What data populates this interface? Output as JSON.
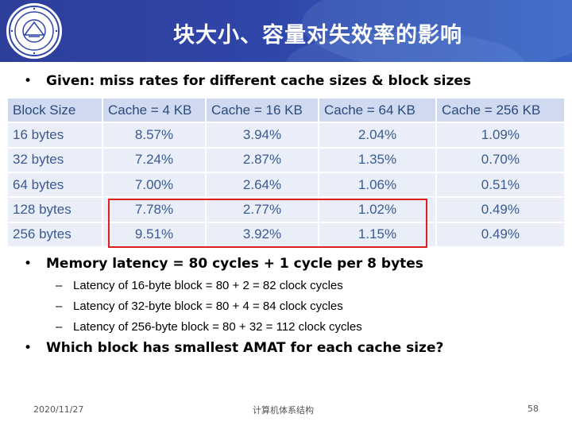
{
  "header": {
    "title": "块大小、容量对失效率的影响"
  },
  "bullets": {
    "given": "Given: miss rates for different cache sizes & block sizes",
    "latency": "Memory latency = 80 cycles + 1 cycle per 8 bytes",
    "question": "Which block has smallest AMAT for each cache size?"
  },
  "sub_bullets": [
    "Latency of 16-byte block = 80 + 2 = 82 clock cycles",
    "Latency of 32-byte block = 80 + 4 = 84 clock cycles",
    "Latency of 256-byte block = 80 + 32 = 112 clock cycles"
  ],
  "table": {
    "headers": [
      "Block Size",
      "Cache = 4 KB",
      "Cache = 16 KB",
      "Cache = 64 KB",
      "Cache = 256 KB"
    ],
    "rows": [
      [
        "16 bytes",
        "8.57%",
        "3.94%",
        "2.04%",
        "1.09%"
      ],
      [
        "32 bytes",
        "7.24%",
        "2.87%",
        "1.35%",
        "0.70%"
      ],
      [
        "64 bytes",
        "7.00%",
        "2.64%",
        "1.06%",
        "0.51%"
      ],
      [
        "128 bytes",
        "7.78%",
        "2.77%",
        "1.02%",
        "0.49%"
      ],
      [
        "256 bytes",
        "9.51%",
        "3.92%",
        "1.15%",
        "0.49%"
      ]
    ]
  },
  "footer": {
    "date": "2020/11/27",
    "course": "计算机体系结构",
    "page": "58"
  },
  "colors": {
    "banner": "#2f45a8",
    "table_header_bg": "#cfdaf0",
    "table_cell_bg": "#e9eef8",
    "table_text": "#3a5a92",
    "highlight_border": "#e02020"
  },
  "icons": {
    "logo": "university-seal-icon"
  }
}
